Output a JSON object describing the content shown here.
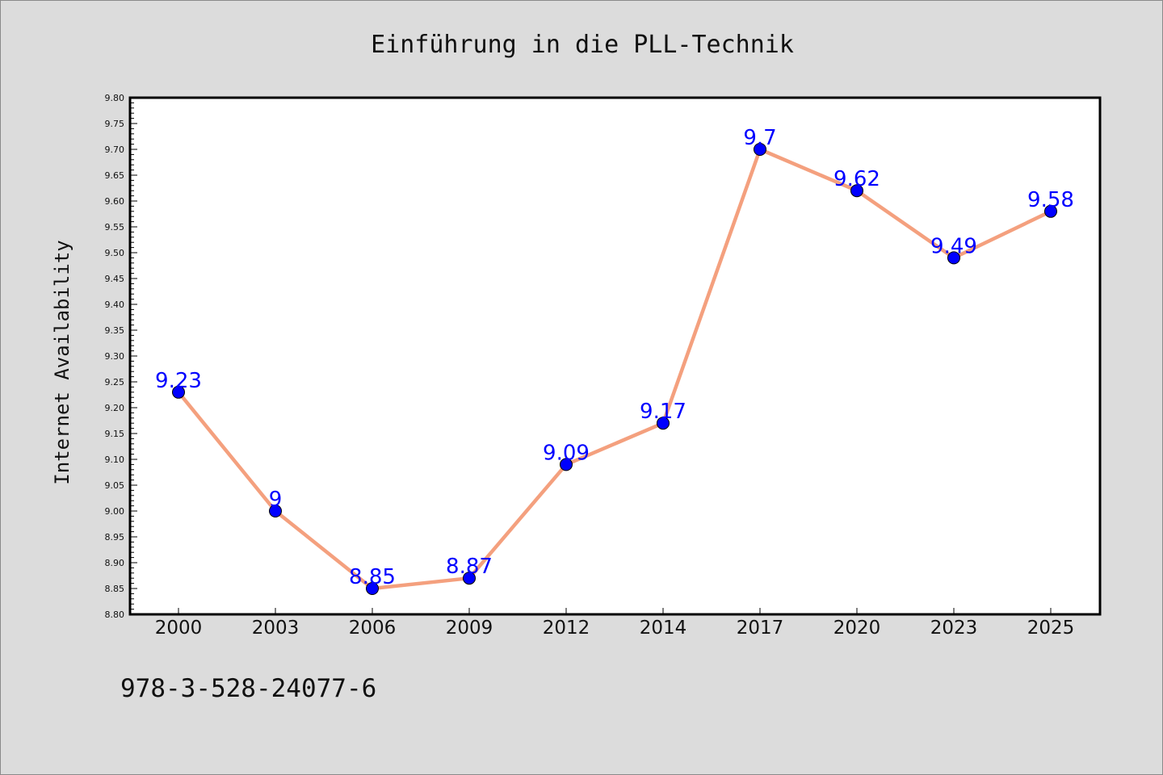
{
  "chart_data": {
    "type": "line",
    "title": "Einführung in die PLL-Technik",
    "xlabel": "",
    "ylabel": "Internet Availability",
    "categories": [
      "2000",
      "2003",
      "2006",
      "2009",
      "2012",
      "2014",
      "2017",
      "2020",
      "2023",
      "2025"
    ],
    "series": [
      {
        "values": [
          9.23,
          9.0,
          8.85,
          8.87,
          9.09,
          9.17,
          9.7,
          9.62,
          9.49,
          9.58
        ],
        "labels": [
          "9.23",
          "9",
          "8.85",
          "8.87",
          "9.09",
          "9.17",
          "9.7",
          "9.62",
          "9.49",
          "9.58"
        ],
        "line_color": "#f4a07e",
        "marker_color": "#0000ff"
      }
    ],
    "ylim": [
      8.8,
      9.8
    ],
    "yticks": [
      "8.80",
      "8.85",
      "8.90",
      "8.95",
      "9.00",
      "9.05",
      "9.10",
      "9.15",
      "9.20",
      "9.25",
      "9.30",
      "9.35",
      "9.40",
      "9.45",
      "9.50",
      "9.55",
      "9.60",
      "9.65",
      "9.70",
      "9.75",
      "9.80"
    ],
    "grid": false,
    "legend": "none"
  },
  "footnote": "978-3-528-24077-6"
}
